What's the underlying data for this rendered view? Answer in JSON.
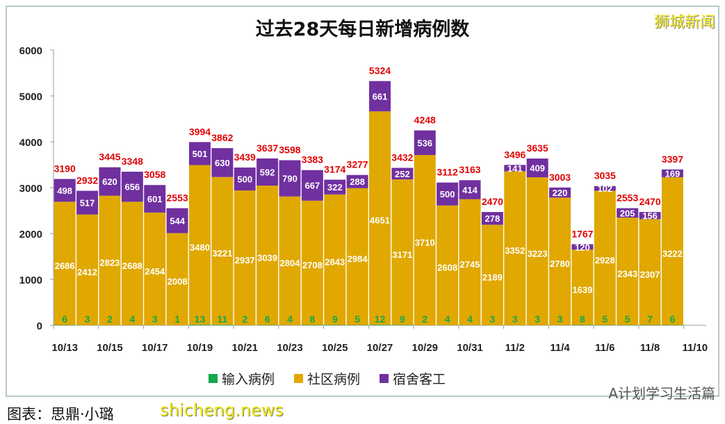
{
  "brand": "狮城新闻",
  "watermark_wechat": "A计划学习生活篇",
  "caption": "图表：思鼎·小璐",
  "watermark_site": "shicheng.news",
  "chart_data": {
    "type": "bar",
    "stacked": true,
    "title": "过去28天每日新增病例数",
    "categories": [
      "10/13",
      "10/14",
      "10/15",
      "10/16",
      "10/17",
      "10/18",
      "10/19",
      "10/20",
      "10/21",
      "10/22",
      "10/23",
      "10/24",
      "10/25",
      "10/26",
      "10/27",
      "10/28",
      "10/29",
      "10/30",
      "10/31",
      "11/1",
      "11/2",
      "11/3",
      "11/4",
      "11/5",
      "11/6",
      "11/7",
      "11/8",
      "11/9"
    ],
    "x_tick_labels": [
      "10/13",
      "10/15",
      "10/17",
      "10/19",
      "10/21",
      "10/23",
      "10/25",
      "10/27",
      "10/29",
      "10/31",
      "11/2",
      "11/4",
      "11/6",
      "11/8",
      "11/10"
    ],
    "ylim": [
      0,
      6000
    ],
    "y_ticks": [
      0,
      1000,
      2000,
      3000,
      4000,
      5000,
      6000
    ],
    "grid": false,
    "legend_position": "bottom",
    "colors": {
      "imported": "#12a84f",
      "community": "#e0a800",
      "dorm": "#7030a0",
      "total": "#e00000"
    },
    "series": [
      {
        "name": "输入病例",
        "key": "imported",
        "values": [
          6,
          3,
          2,
          4,
          3,
          1,
          13,
          11,
          2,
          6,
          4,
          8,
          9,
          5,
          12,
          9,
          2,
          4,
          4,
          3,
          3,
          3,
          3,
          8,
          5,
          5,
          7,
          6
        ]
      },
      {
        "name": "社区病例",
        "key": "community",
        "values": [
          2686,
          2412,
          2823,
          2688,
          2454,
          2008,
          3480,
          3221,
          2937,
          3039,
          2804,
          2708,
          2843,
          2984,
          4651,
          3171,
          3710,
          2608,
          2745,
          2189,
          3352,
          3223,
          2780,
          1639,
          2928,
          2343,
          2307,
          3222
        ]
      },
      {
        "name": "宿舍客工",
        "key": "dorm",
        "values": [
          498,
          517,
          620,
          656,
          601,
          544,
          501,
          630,
          500,
          592,
          790,
          667,
          322,
          288,
          661,
          252,
          536,
          500,
          414,
          278,
          141,
          409,
          220,
          120,
          102,
          205,
          156,
          169
        ]
      }
    ],
    "totals": [
      3190,
      2932,
      3445,
      3348,
      3058,
      2553,
      3994,
      3862,
      3439,
      3637,
      3598,
      3383,
      3174,
      3277,
      5324,
      3432,
      4248,
      3112,
      3163,
      2470,
      3496,
      3635,
      3003,
      1767,
      3035,
      2553,
      2470,
      3397
    ]
  }
}
